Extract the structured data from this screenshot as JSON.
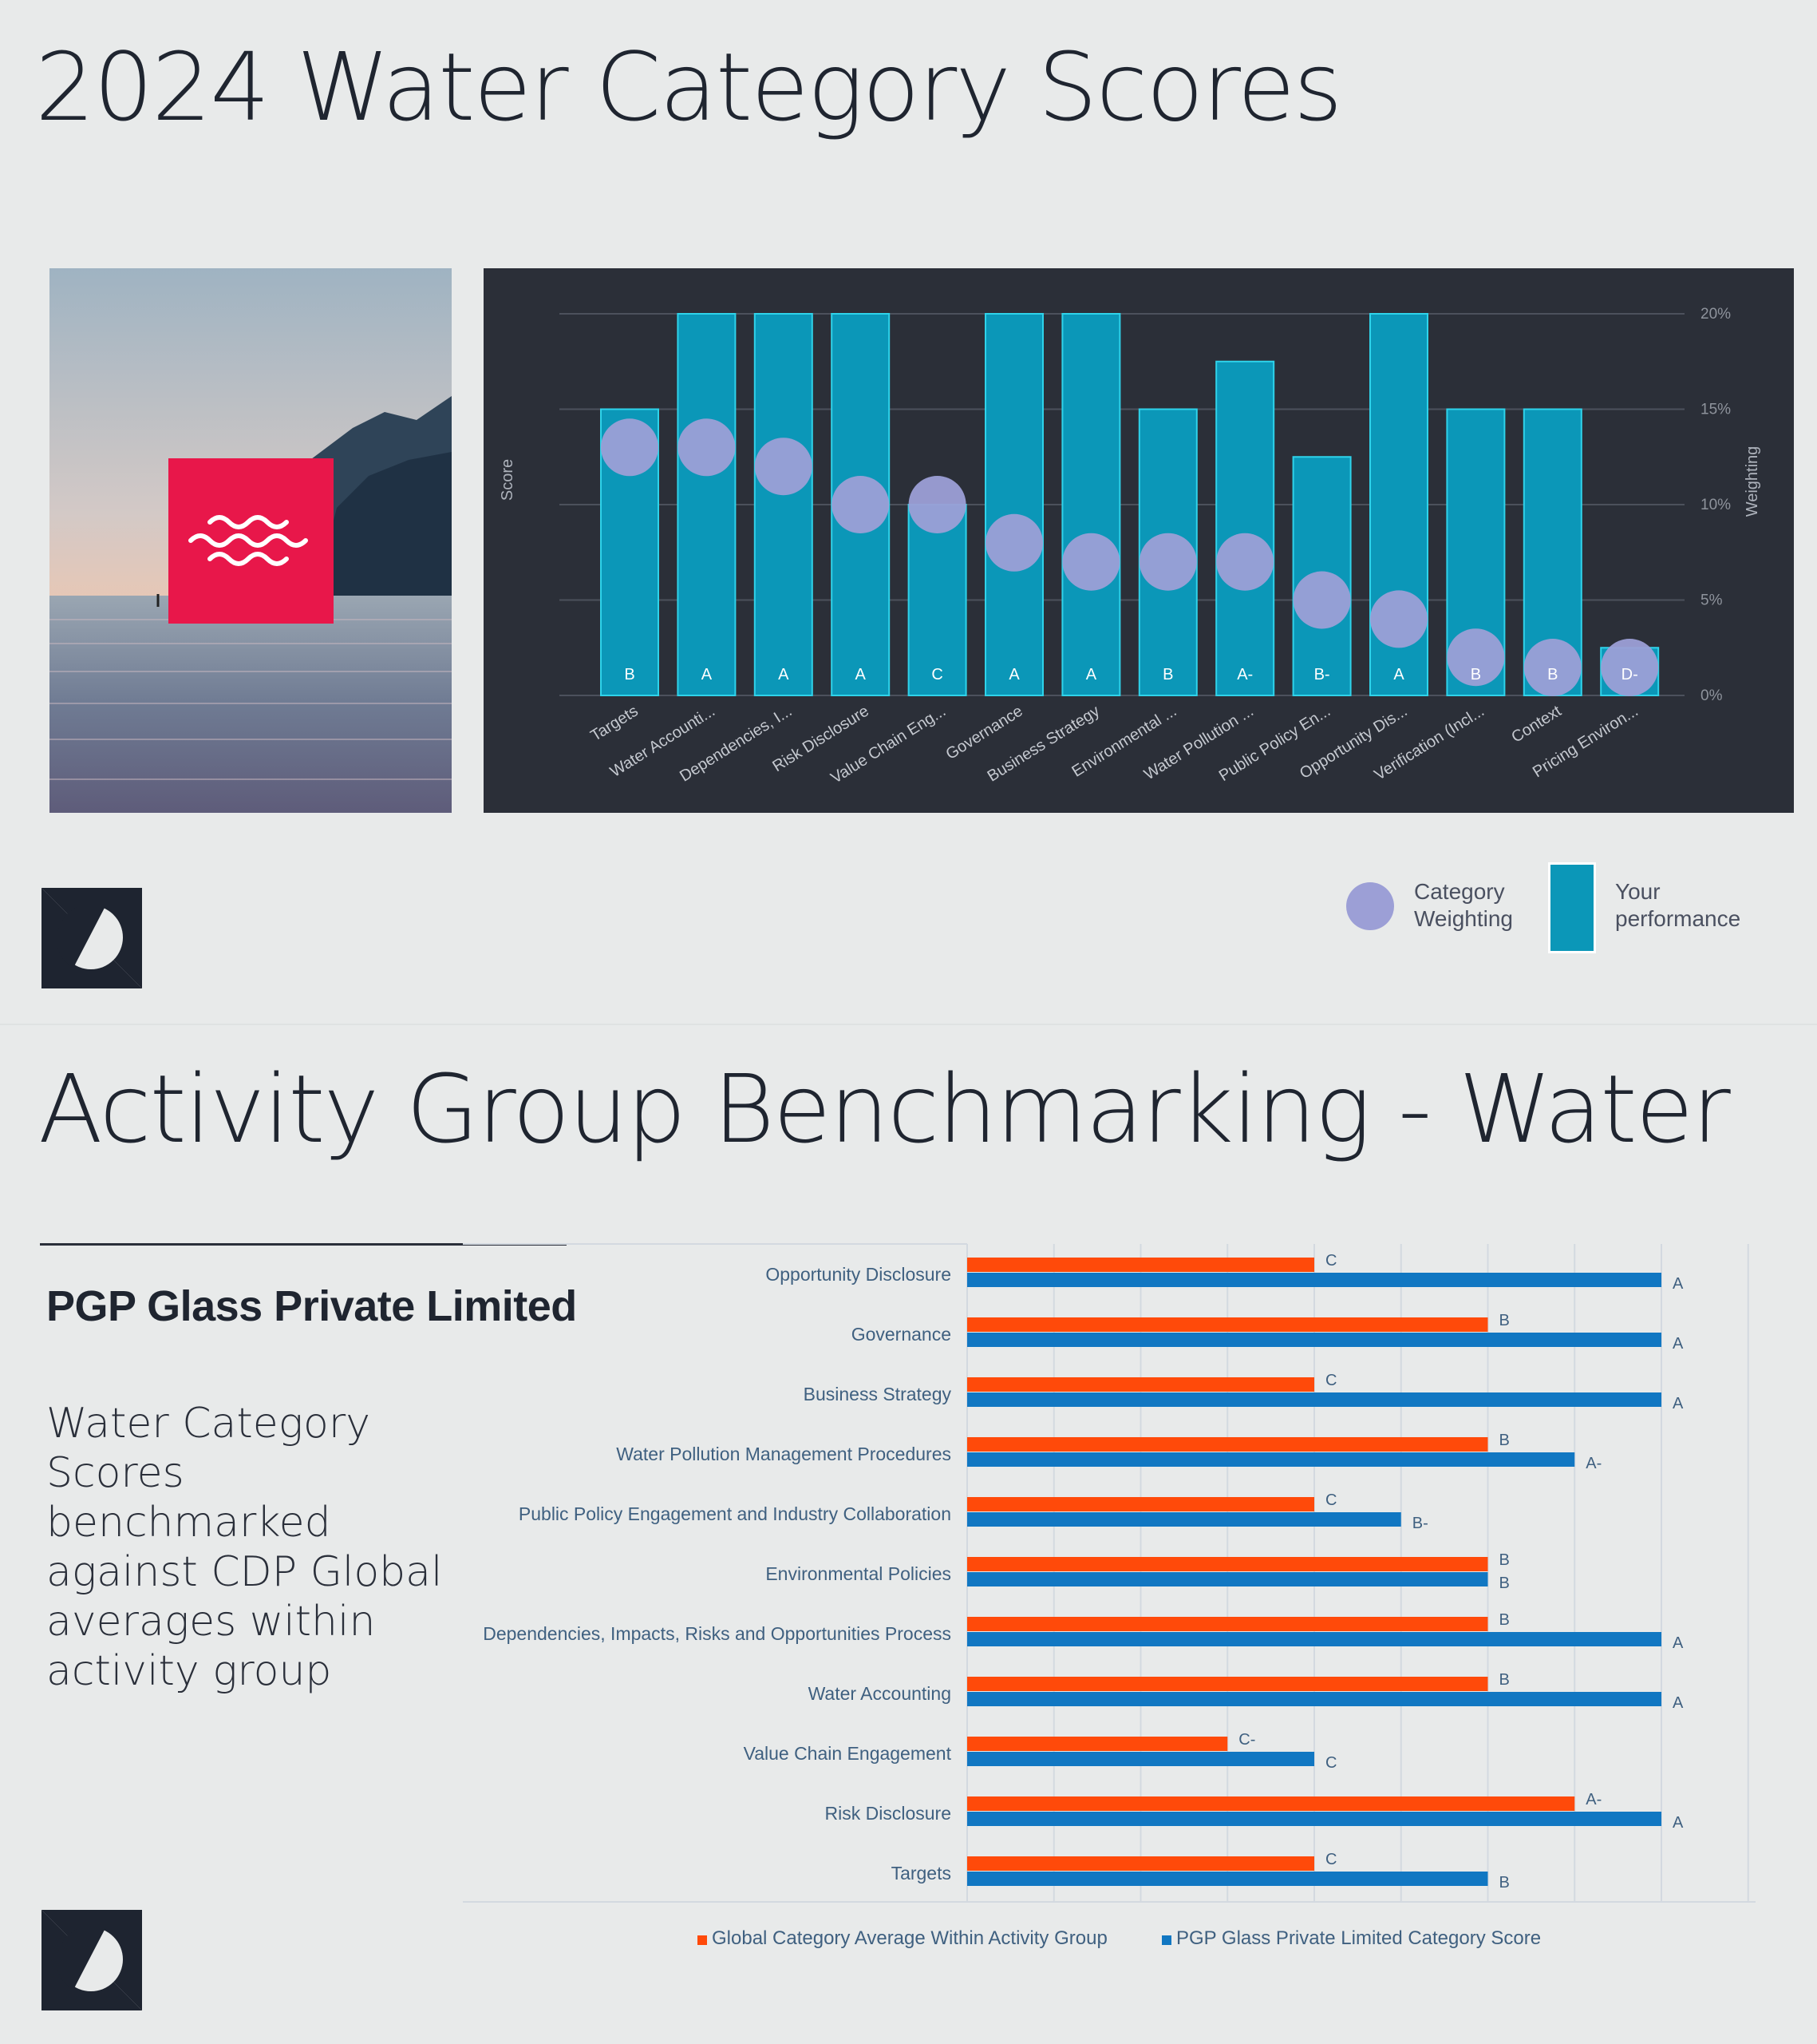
{
  "page": {
    "title": "2024 Water Category Scores"
  },
  "section2": {
    "title": "Activity Group Benchmarking - Water",
    "company_name": "PGP Glass Private Limited",
    "description": "Water Category Scores benchmarked against CDP Global averages within activity group"
  },
  "icons": {
    "water_badge": "water-waves-icon",
    "logo": "cdp-logo-icon"
  },
  "colors": {
    "accent_red": "#e8174a",
    "bar_teal": "#0b97b8",
    "bubble": "#9c9fd6",
    "global_orange": "#ff4a0a",
    "company_blue": "#1177c2"
  },
  "legend1": {
    "weighting_label": "Category Weighting",
    "performance_label": "Your performance"
  },
  "chart_data": [
    {
      "type": "bar",
      "categories": [
        "Targets",
        "Water Accounti...",
        "Dependencies, I...",
        "Risk Disclosure",
        "Value Chain Eng...",
        "Governance",
        "Business Strategy",
        "Environmental ...",
        "Water Pollution ...",
        "Public Policy En...",
        "Opportunity Dis...",
        "Verification (Incl...",
        "Context",
        "Pricing Environ..."
      ],
      "score_grades": [
        "B",
        "A",
        "A",
        "A",
        "C",
        "A",
        "A",
        "B",
        "A-",
        "B-",
        "A",
        "B",
        "B",
        "D-"
      ],
      "score_level_percent": [
        15,
        20,
        20,
        20,
        10,
        20,
        20,
        15,
        17.5,
        12.5,
        20,
        15,
        15,
        2.5
      ],
      "weighting_percent": [
        13,
        13,
        12,
        10,
        10,
        8,
        7,
        7,
        7,
        5,
        4,
        2,
        1,
        1
      ],
      "ylabel_left": "Score",
      "ylabel_right": "Weighting",
      "y_ticks": [
        "0%",
        "5%",
        "10%",
        "15%",
        "20%"
      ],
      "ylim": [
        0,
        20
      ],
      "grid": true,
      "legend": "bottom-right"
    },
    {
      "type": "bar",
      "orientation": "horizontal",
      "categories": [
        "Opportunity Disclosure",
        "Governance",
        "Business Strategy",
        "Water Pollution Management Procedures",
        "Public Policy Engagement and Industry Collaboration",
        "Environmental Policies",
        "Dependencies, Impacts, Risks and Opportunities Process",
        "Water Accounting",
        "Value Chain Engagement",
        "Risk Disclosure",
        "Targets"
      ],
      "series": [
        {
          "name": "Global Category Average Within Activity Group",
          "grades": [
            "C",
            "B",
            "C",
            "B",
            "C",
            "B",
            "B",
            "B",
            "C-",
            "A-",
            "C"
          ],
          "level": [
            4,
            6,
            4,
            6,
            4,
            6,
            6,
            6,
            3,
            7,
            4
          ]
        },
        {
          "name": "PGP Glass Private Limited Category Score",
          "grades": [
            "A",
            "A",
            "A",
            "A-",
            "B-",
            "B",
            "A",
            "A",
            "C",
            "A",
            "B"
          ],
          "level": [
            8,
            8,
            8,
            7,
            5,
            6,
            8,
            8,
            4,
            8,
            6
          ]
        }
      ],
      "xlim": [
        0,
        9
      ],
      "grid": true,
      "legend": "bottom"
    }
  ]
}
